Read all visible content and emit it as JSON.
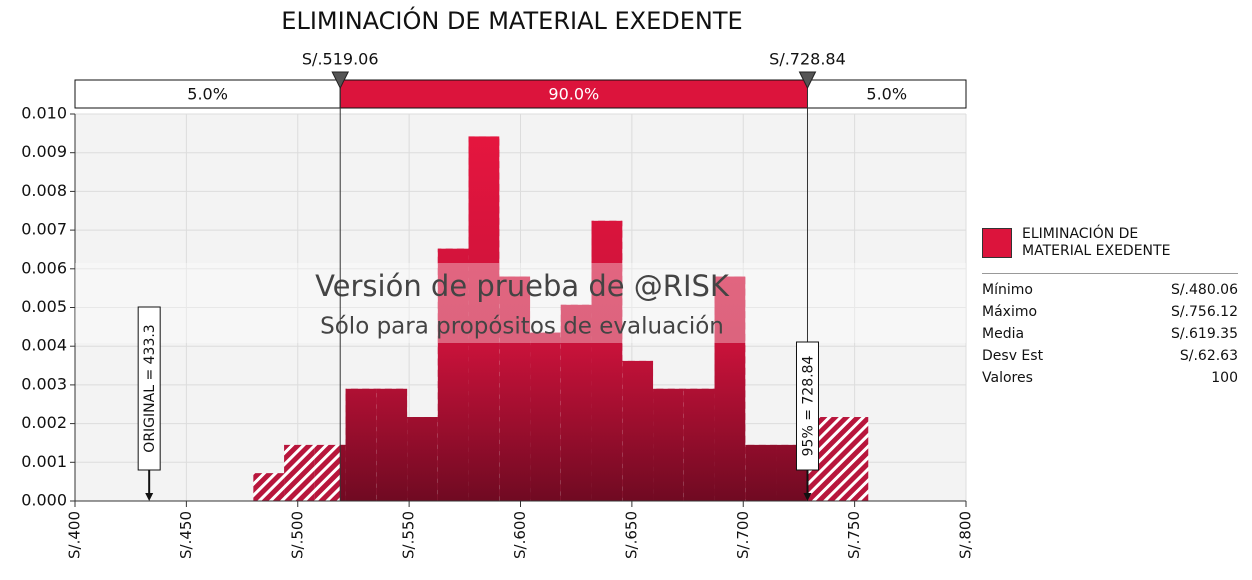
{
  "chart_data": {
    "type": "histogram",
    "title": "ELIMINACIÓN DE MATERIAL EXEDENTE",
    "bins": [
      480.06,
      493.86,
      507.67,
      521.47,
      535.27,
      549.08,
      562.88,
      576.68,
      590.48,
      604.29,
      618.09,
      631.89,
      645.7,
      659.5,
      673.3,
      687.11,
      700.91,
      714.71,
      728.52,
      742.32,
      756.12
    ],
    "series": [
      {
        "name": "ELIMINACIÓN DE MATERIAL EXEDENTE",
        "color": "#dc143c",
        "values": [
          0.00072,
          0.00145,
          0.00145,
          0.0029,
          0.0029,
          0.00217,
          0.00652,
          0.00942,
          0.0058,
          0.00435,
          0.00507,
          0.00724,
          0.00362,
          0.0029,
          0.0029,
          0.0058,
          0.00145,
          0.00145,
          0.00217,
          0.00217
        ]
      }
    ],
    "xlim": [
      400,
      800
    ],
    "xticks": [
      {
        "value": 400,
        "label": "S/.400"
      },
      {
        "value": 450,
        "label": "S/.450"
      },
      {
        "value": 500,
        "label": "S/.500"
      },
      {
        "value": 550,
        "label": "S/.550"
      },
      {
        "value": 600,
        "label": "S/.600"
      },
      {
        "value": 650,
        "label": "S/.650"
      },
      {
        "value": 700,
        "label": "S/.700"
      },
      {
        "value": 750,
        "label": "S/.750"
      },
      {
        "value": 800,
        "label": "S/.800"
      }
    ],
    "ylim": [
      0,
      0.01
    ],
    "yticks": [
      {
        "value": 0,
        "label": "0.000"
      },
      0.001,
      0.002,
      0.003,
      0.004,
      0.005,
      0.006,
      0.007,
      0.008,
      0.009,
      {
        "value": 0.01,
        "label": "0.010"
      }
    ],
    "grid": true,
    "delimiters": [
      {
        "value": 519.06,
        "label": "S/.519.06"
      },
      {
        "value": 728.84,
        "label": "S/.728.84"
      }
    ],
    "regions": {
      "values": [
        5,
        90,
        5
      ],
      "value_labels": [
        "5.0%",
        "90.0%",
        "5.0%"
      ]
    },
    "annotations": [
      {
        "text": "ORIGINAL = 433.3",
        "value": 433.3
      },
      {
        "text": "95% = 728.84",
        "value": 728.84
      }
    ],
    "watermark": [
      "Versión de prueba de @RISK",
      "Sólo para propósitos de evaluación"
    ],
    "stats": [
      [
        "Mínimo",
        "S/.480.06"
      ],
      [
        "Máximo",
        "S/.756.12"
      ],
      [
        "Media",
        "S/.619.35"
      ],
      [
        "Desv Est",
        "S/.62.63"
      ],
      [
        "Valores",
        100
      ]
    ]
  }
}
